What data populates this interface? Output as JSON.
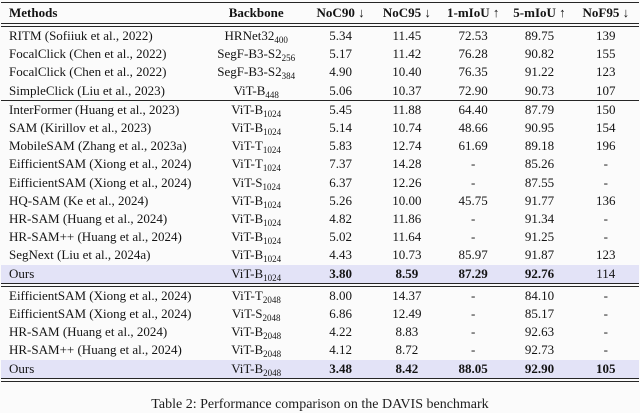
{
  "caption": "Table 2: Performance comparison on the DAVIS benchmark",
  "colors": {
    "highlight_row": "#e3e3f7",
    "rule": "#262626",
    "text": "#141414",
    "background": "#fbfbfb"
  },
  "table": {
    "columns": [
      {
        "label": "Methods",
        "align": "left"
      },
      {
        "label": "Backbone",
        "align": "center"
      },
      {
        "label": "NoC90 ↓",
        "align": "center"
      },
      {
        "label": "NoC95 ↓",
        "align": "center"
      },
      {
        "label": "1-mIoU ↑",
        "align": "center"
      },
      {
        "label": "5-mIoU ↑",
        "align": "center"
      },
      {
        "label": "NoF95 ↓",
        "align": "center"
      }
    ],
    "sections": [
      {
        "rule_after": "single",
        "rows": [
          {
            "method": "RITM (Sofiiuk et al., 2022)",
            "backbone": "HRNet32",
            "backbone_sub": "400",
            "values": [
              "5.34",
              "11.45",
              "72.53",
              "89.75",
              "139"
            ],
            "bold_values": [
              false,
              false,
              false,
              false,
              false
            ],
            "highlight": false
          },
          {
            "method": "FocalClick (Chen et al., 2022)",
            "backbone": "SegF-B3-S2",
            "backbone_sub": "256",
            "values": [
              "5.17",
              "11.42",
              "76.28",
              "90.82",
              "155"
            ],
            "bold_values": [
              false,
              false,
              false,
              false,
              false
            ],
            "highlight": false
          },
          {
            "method": "FocalClick (Chen et al., 2022)",
            "backbone": "SegF-B3-S2",
            "backbone_sub": "384",
            "values": [
              "4.90",
              "10.40",
              "76.35",
              "91.22",
              "123"
            ],
            "bold_values": [
              false,
              false,
              false,
              false,
              false
            ],
            "highlight": false
          },
          {
            "method": "SimpleClick (Liu et al., 2023)",
            "backbone": "ViT-B",
            "backbone_sub": "448",
            "values": [
              "5.06",
              "10.37",
              "72.90",
              "90.73",
              "107"
            ],
            "bold_values": [
              false,
              false,
              false,
              false,
              false
            ],
            "highlight": false
          }
        ]
      },
      {
        "rule_after": "double",
        "rows": [
          {
            "method": "InterFormer (Huang et al., 2023)",
            "backbone": "ViT-B",
            "backbone_sub": "1024",
            "values": [
              "5.45",
              "11.88",
              "64.40",
              "87.79",
              "150"
            ],
            "bold_values": [
              false,
              false,
              false,
              false,
              false
            ],
            "highlight": false
          },
          {
            "method": "SAM (Kirillov et al., 2023)",
            "backbone": "ViT-B",
            "backbone_sub": "1024",
            "values": [
              "5.14",
              "10.74",
              "48.66",
              "90.95",
              "154"
            ],
            "bold_values": [
              false,
              false,
              false,
              false,
              false
            ],
            "highlight": false
          },
          {
            "method": "MobileSAM (Zhang et al., 2023a)",
            "backbone": "ViT-T",
            "backbone_sub": "1024",
            "values": [
              "5.83",
              "12.74",
              "61.69",
              "89.18",
              "196"
            ],
            "bold_values": [
              false,
              false,
              false,
              false,
              false
            ],
            "highlight": false
          },
          {
            "method": "EifficientSAM (Xiong et al., 2024)",
            "backbone": "ViT-T",
            "backbone_sub": "1024",
            "values": [
              "7.37",
              "14.28",
              "-",
              "85.26",
              "-"
            ],
            "bold_values": [
              false,
              false,
              false,
              false,
              false
            ],
            "highlight": false
          },
          {
            "method": "EifficientSAM (Xiong et al., 2024)",
            "backbone": "ViT-S",
            "backbone_sub": "1024",
            "values": [
              "6.37",
              "12.26",
              "-",
              "87.55",
              "-"
            ],
            "bold_values": [
              false,
              false,
              false,
              false,
              false
            ],
            "highlight": false
          },
          {
            "method": "HQ-SAM (Ke et al., 2024)",
            "backbone": "ViT-B",
            "backbone_sub": "1024",
            "values": [
              "5.26",
              "10.00",
              "45.75",
              "91.77",
              "136"
            ],
            "bold_values": [
              false,
              false,
              false,
              false,
              false
            ],
            "highlight": false
          },
          {
            "method": "HR-SAM (Huang et al., 2024)",
            "backbone": "ViT-B",
            "backbone_sub": "1024",
            "values": [
              "4.82",
              "11.86",
              "-",
              "91.34",
              "-"
            ],
            "bold_values": [
              false,
              false,
              false,
              false,
              false
            ],
            "highlight": false
          },
          {
            "method": "HR-SAM++ (Huang et al., 2024)",
            "backbone": "ViT-B",
            "backbone_sub": "1024",
            "values": [
              "5.02",
              "11.64",
              "-",
              "91.25",
              "-"
            ],
            "bold_values": [
              false,
              false,
              false,
              false,
              false
            ],
            "highlight": false
          },
          {
            "method": "SegNext (Liu et al., 2024a)",
            "backbone": "ViT-B",
            "backbone_sub": "1024",
            "values": [
              "4.43",
              "10.73",
              "85.97",
              "91.87",
              "123"
            ],
            "bold_values": [
              false,
              false,
              false,
              false,
              false
            ],
            "highlight": false
          },
          {
            "method": "Ours",
            "backbone": "ViT-B",
            "backbone_sub": "1024",
            "values": [
              "3.80",
              "8.59",
              "87.29",
              "92.76",
              "114"
            ],
            "bold_values": [
              true,
              true,
              true,
              true,
              false
            ],
            "highlight": true
          }
        ]
      },
      {
        "rule_after": "double",
        "rows": [
          {
            "method": "EifficientSAM (Xiong et al., 2024)",
            "backbone": "ViT-T",
            "backbone_sub": "2048",
            "values": [
              "8.00",
              "14.37",
              "-",
              "84.10",
              "-"
            ],
            "bold_values": [
              false,
              false,
              false,
              false,
              false
            ],
            "highlight": false
          },
          {
            "method": "EifficientSAM (Xiong et al., 2024)",
            "backbone": "ViT-S",
            "backbone_sub": "2048",
            "values": [
              "6.86",
              "12.49",
              "-",
              "85.17",
              "-"
            ],
            "bold_values": [
              false,
              false,
              false,
              false,
              false
            ],
            "highlight": false
          },
          {
            "method": "HR-SAM (Huang et al., 2024)",
            "backbone": "ViT-B",
            "backbone_sub": "2048",
            "values": [
              "4.22",
              "8.83",
              "-",
              "92.63",
              "-"
            ],
            "bold_values": [
              false,
              false,
              false,
              false,
              false
            ],
            "highlight": false
          },
          {
            "method": "HR-SAM++ (Huang et al., 2024)",
            "backbone": "ViT-B",
            "backbone_sub": "2048",
            "values": [
              "4.12",
              "8.72",
              "-",
              "92.73",
              "-"
            ],
            "bold_values": [
              false,
              false,
              false,
              false,
              false
            ],
            "highlight": false
          },
          {
            "method": "Ours",
            "backbone": "ViT-B",
            "backbone_sub": "2048",
            "values": [
              "3.48",
              "8.42",
              "88.05",
              "92.90",
              "105"
            ],
            "bold_values": [
              true,
              true,
              true,
              true,
              true
            ],
            "highlight": true
          }
        ]
      }
    ]
  }
}
